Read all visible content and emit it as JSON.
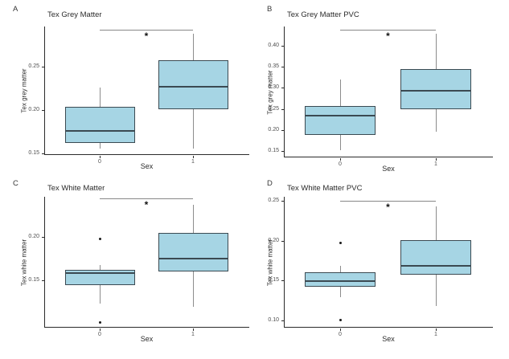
{
  "figure": {
    "type": "boxplot-grid",
    "background": "#ffffff",
    "colors": {
      "box_fill": "#a6d5e4",
      "box_border": "#3b4a52",
      "whisker": "#8c8c8c",
      "bracket": "#888888",
      "axis": "#2b2b2b",
      "tick_text": "#4f4f4f",
      "title_text": "#2b2b2b",
      "outlier": "#1a1a1a",
      "sig_star": "#111111"
    }
  },
  "chart_data": [
    {
      "panel": "A",
      "type": "box",
      "title": "Tex Grey Matter",
      "xlabel": "Sex",
      "ylabel": "Tex grey matter",
      "categories": [
        "0",
        "1"
      ],
      "ylim": [
        0.148,
        0.297
      ],
      "yticks": [
        0.15,
        0.2,
        0.25
      ],
      "series": [
        {
          "category": "0",
          "whisker_low": 0.155,
          "q1": 0.162,
          "median": 0.176,
          "q3": 0.204,
          "whisker_high": 0.226,
          "outliers": []
        },
        {
          "category": "1",
          "whisker_low": 0.155,
          "q1": 0.201,
          "median": 0.227,
          "q3": 0.258,
          "whisker_high": 0.289,
          "outliers": []
        }
      ],
      "significance": {
        "label": "*",
        "y": 0.293
      }
    },
    {
      "panel": "B",
      "type": "box",
      "title": "Tex Grey Matter PVC",
      "xlabel": "Sex",
      "ylabel": "Tex grey matter",
      "categories": [
        "0",
        "1"
      ],
      "ylim": [
        0.135,
        0.445
      ],
      "yticks": [
        0.15,
        0.2,
        0.25,
        0.3,
        0.35,
        0.4
      ],
      "series": [
        {
          "category": "0",
          "whisker_low": 0.153,
          "q1": 0.188,
          "median": 0.233,
          "q3": 0.257,
          "whisker_high": 0.319,
          "outliers": []
        },
        {
          "category": "1",
          "whisker_low": 0.195,
          "q1": 0.249,
          "median": 0.293,
          "q3": 0.345,
          "whisker_high": 0.427,
          "outliers": []
        }
      ],
      "significance": {
        "label": "*",
        "y": 0.437
      }
    },
    {
      "panel": "C",
      "type": "box",
      "title": "Tex White Matter",
      "xlabel": "Sex",
      "ylabel": "Tex white matter",
      "categories": [
        "0",
        "1"
      ],
      "ylim": [
        0.095,
        0.246
      ],
      "yticks": [
        0.15,
        0.2
      ],
      "series": [
        {
          "category": "0",
          "whisker_low": 0.123,
          "q1": 0.144,
          "median": 0.158,
          "q3": 0.162,
          "whisker_high": 0.167,
          "outliers": [
            0.197,
            0.101
          ]
        },
        {
          "category": "1",
          "whisker_low": 0.119,
          "q1": 0.16,
          "median": 0.175,
          "q3": 0.204,
          "whisker_high": 0.237,
          "outliers": []
        }
      ],
      "significance": {
        "label": "*",
        "y": 0.244
      }
    },
    {
      "panel": "D",
      "type": "box",
      "title": "Tex White Matter PVC",
      "xlabel": "Sex",
      "ylabel": "Tex white matter",
      "categories": [
        "0",
        "1"
      ],
      "ylim": [
        0.091,
        0.255
      ],
      "yticks": [
        0.1,
        0.15,
        0.2,
        0.25
      ],
      "series": [
        {
          "category": "0",
          "whisker_low": 0.129,
          "q1": 0.142,
          "median": 0.149,
          "q3": 0.16,
          "whisker_high": 0.168,
          "outliers": [
            0.197,
            0.101
          ]
        },
        {
          "category": "1",
          "whisker_low": 0.118,
          "q1": 0.157,
          "median": 0.168,
          "q3": 0.201,
          "whisker_high": 0.243,
          "outliers": []
        }
      ],
      "significance": {
        "label": "*",
        "y": 0.25
      }
    }
  ]
}
